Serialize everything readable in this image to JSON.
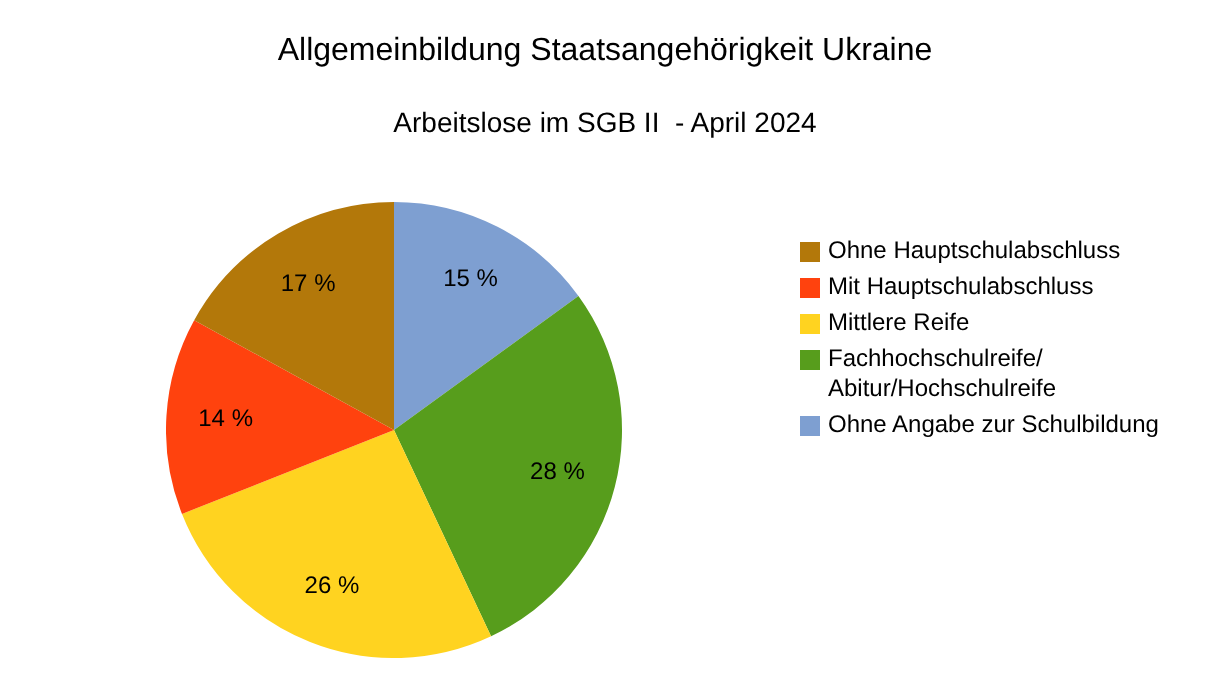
{
  "chart_data": {
    "type": "pie",
    "title": "Allgemeinbildung Staatsangehörigkeit Ukraine",
    "subtitle": "Arbeitslose im SGB II  - April 2024",
    "categories": [
      "Ohne Hauptschulabschluss",
      "Mit Hauptschulabschluss",
      "Mittlere Reife",
      "Fachhochschulreife/ Abitur/Hochschulreife",
      "Ohne Angabe zur Schulbildung"
    ],
    "values": [
      17,
      14,
      26,
      28,
      15
    ],
    "value_labels": [
      "17 %",
      "14 %",
      "26 %",
      "28 %",
      "15 %"
    ],
    "colors": [
      "#b3780a",
      "#ff420e",
      "#ffd320",
      "#579d1c",
      "#7e9fd1"
    ],
    "legend": "right"
  }
}
